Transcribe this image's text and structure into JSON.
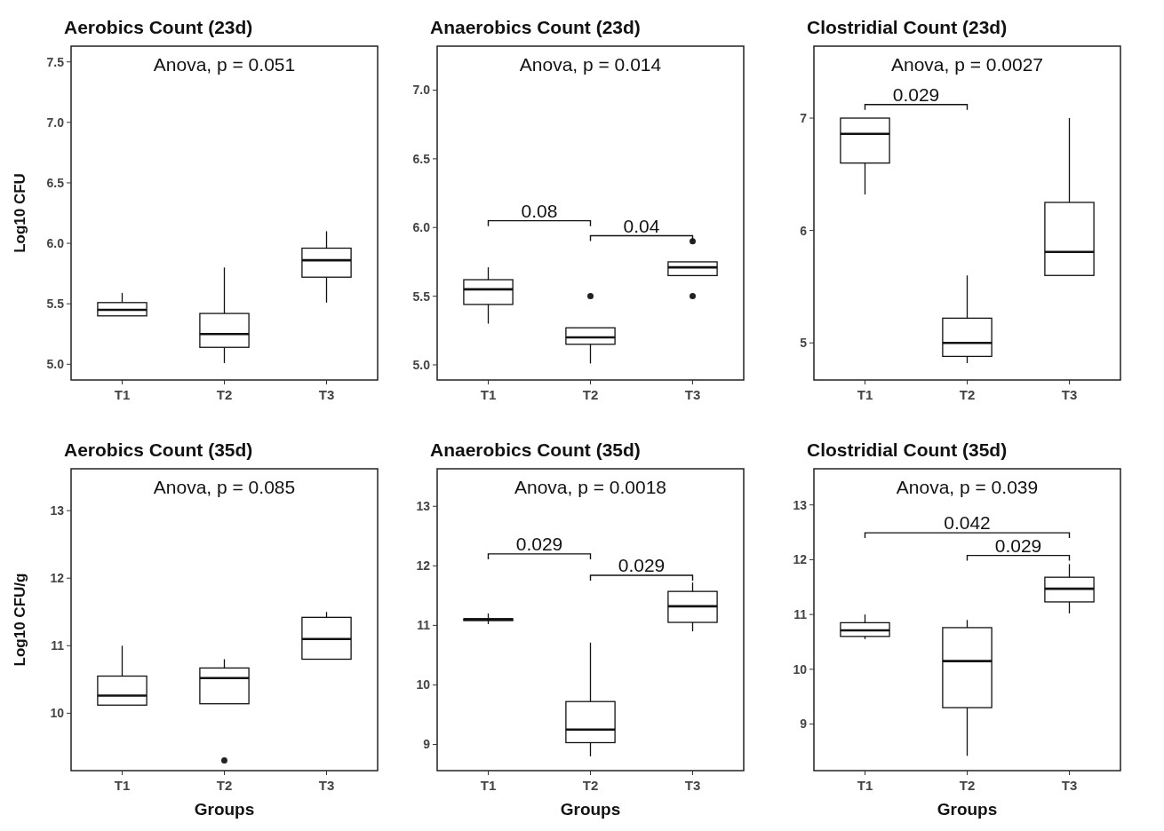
{
  "chart_data": [
    {
      "type": "box",
      "title": "Aerobics Count (23d)",
      "ylabel": "Log10 CFU",
      "categories": [
        "T1",
        "T2",
        "T3"
      ],
      "ylim": [
        4.87,
        7.63
      ],
      "yticks": [
        {
          "value": 5,
          "label": "5.0"
        },
        5.5,
        {
          "value": 6,
          "label": "6.0"
        },
        6.5,
        {
          "value": 7,
          "label": "7.0"
        },
        7.5
      ],
      "annotations": [
        "Anova, p = 0.051"
      ],
      "boxes": [
        {
          "low": 5.4,
          "q1": 5.4,
          "median": 5.45,
          "q3": 5.51,
          "high": 5.59
        },
        {
          "low": 5.01,
          "q1": 5.14,
          "median": 5.25,
          "q3": 5.42,
          "high": 5.8
        },
        {
          "low": 5.51,
          "q1": 5.72,
          "median": 5.86,
          "q3": 5.96,
          "high": 6.1
        }
      ]
    },
    {
      "type": "box",
      "title": "Anaerobics Count (23d)",
      "categories": [
        "T1",
        "T2",
        "T3"
      ],
      "ylim": [
        4.89,
        7.32
      ],
      "yticks": [
        {
          "value": 5,
          "label": "5.0"
        },
        5.5,
        {
          "value": 6,
          "label": "6.0"
        },
        6.5,
        {
          "value": 7,
          "label": "7.0"
        }
      ],
      "annotations": [
        "Anova, p = 0.014",
        "0.08",
        "0.04"
      ],
      "boxes": [
        {
          "low": 5.3,
          "q1": 5.44,
          "median": 5.55,
          "q3": 5.62,
          "high": 5.71
        },
        {
          "low": 5.01,
          "q1": 5.15,
          "median": 5.2,
          "q3": 5.27,
          "high": 5.27,
          "outliers": [
            5.5
          ]
        },
        {
          "low": 5.65,
          "q1": 5.65,
          "median": 5.71,
          "q3": 5.75,
          "high": 5.75,
          "outliers": [
            5.9,
            5.5
          ]
        }
      ]
    },
    {
      "type": "box",
      "title": "Clostridial Count (23d)",
      "categories": [
        "T1",
        "T2",
        "T3"
      ],
      "ylim": [
        4.67,
        7.64
      ],
      "yticks": [
        5,
        6,
        7
      ],
      "annotations": [
        "Anova, p = 0.0027",
        "0.029"
      ],
      "boxes": [
        {
          "low": 6.32,
          "q1": 6.6,
          "median": 6.86,
          "q3": 7.0,
          "high": 7.0
        },
        {
          "low": 4.82,
          "q1": 4.88,
          "median": 5.0,
          "q3": 5.22,
          "high": 5.6
        },
        {
          "low": 5.6,
          "q1": 5.6,
          "median": 5.81,
          "q3": 6.25,
          "high": 7.0
        }
      ]
    },
    {
      "type": "box",
      "title": "Aerobics Count (35d)",
      "ylabel": "Log10 CFU/g",
      "xlabel": "Groups",
      "categories": [
        "T1",
        "T2",
        "T3"
      ],
      "ylim": [
        9.15,
        13.62
      ],
      "yticks": [
        10,
        11,
        12,
        13
      ],
      "annotations": [
        "Anova, p = 0.085"
      ],
      "boxes": [
        {
          "low": 10.12,
          "q1": 10.12,
          "median": 10.26,
          "q3": 10.55,
          "high": 11.0
        },
        {
          "low": 10.14,
          "q1": 10.14,
          "median": 10.52,
          "q3": 10.67,
          "high": 10.8,
          "outliers": [
            9.3
          ]
        },
        {
          "low": 10.8,
          "q1": 10.8,
          "median": 11.1,
          "q3": 11.42,
          "high": 11.5
        }
      ]
    },
    {
      "type": "box",
      "title": "Anaerobics Count (35d)",
      "xlabel": "Groups",
      "categories": [
        "T1",
        "T2",
        "T3"
      ],
      "ylim": [
        8.56,
        13.63
      ],
      "yticks": [
        9,
        10,
        11,
        12,
        13
      ],
      "annotations": [
        "Anova, p = 0.0018",
        "0.029",
        "0.029"
      ],
      "boxes": [
        {
          "low": 11.02,
          "q1": 11.08,
          "median": 11.1,
          "q3": 11.11,
          "high": 11.2
        },
        {
          "low": 8.8,
          "q1": 9.03,
          "median": 9.25,
          "q3": 9.72,
          "high": 10.71
        },
        {
          "low": 10.9,
          "q1": 11.05,
          "median": 11.32,
          "q3": 11.57,
          "high": 11.72
        }
      ]
    },
    {
      "type": "box",
      "title": "Clostridial Count (35d)",
      "xlabel": "Groups",
      "categories": [
        "T1",
        "T2",
        "T3"
      ],
      "ylim": [
        8.15,
        13.66
      ],
      "yticks": [
        9,
        10,
        11,
        12,
        13
      ],
      "annotations": [
        "Anova, p = 0.039",
        "0.042",
        "0.029"
      ],
      "boxes": [
        {
          "low": 10.55,
          "q1": 10.6,
          "median": 10.71,
          "q3": 10.85,
          "high": 11.0
        },
        {
          "low": 8.42,
          "q1": 9.3,
          "median": 10.15,
          "q3": 10.76,
          "high": 10.9
        },
        {
          "low": 11.02,
          "q1": 11.23,
          "median": 11.47,
          "q3": 11.68,
          "high": 11.92
        }
      ]
    }
  ]
}
